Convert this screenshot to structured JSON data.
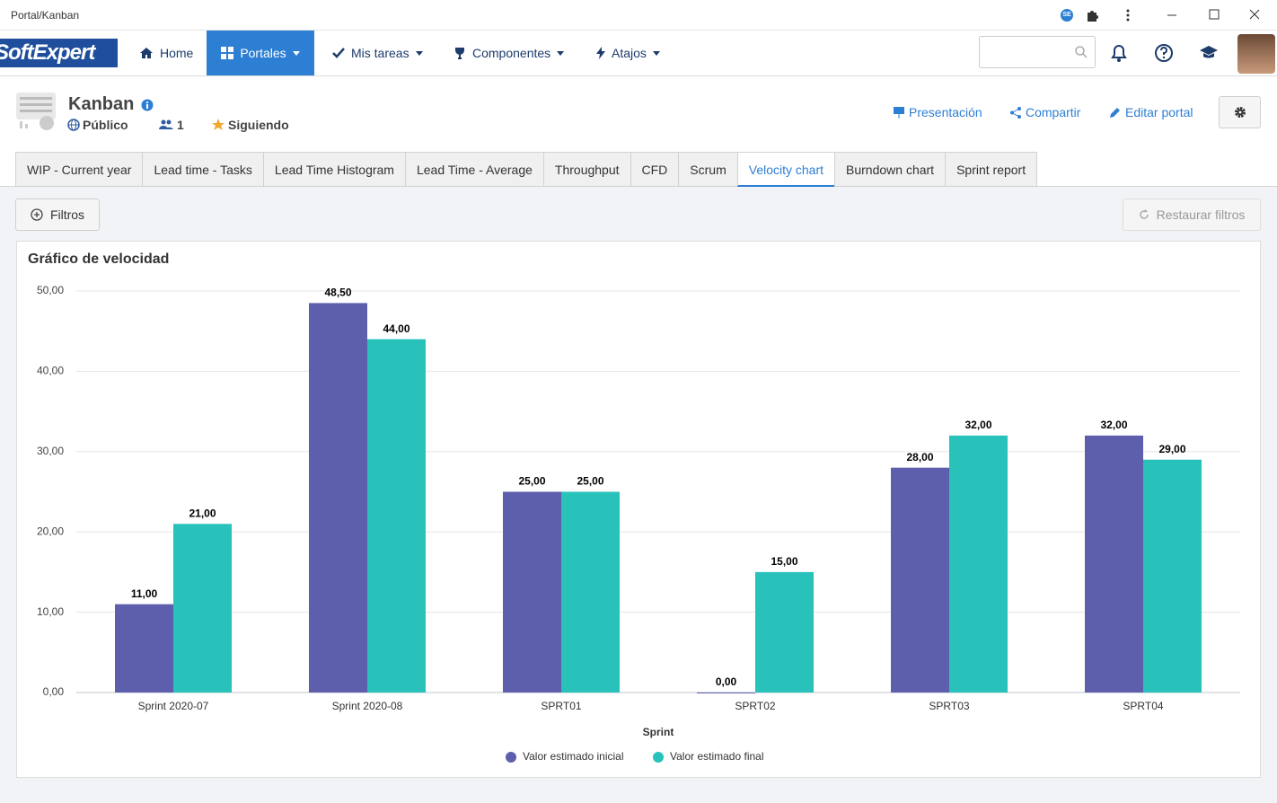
{
  "window": {
    "title": "Portal/Kanban",
    "badge": "SE"
  },
  "logo": "SoftExpert",
  "nav": {
    "items": [
      "Home",
      "Portales",
      "Mis tareas",
      "Componentes",
      "Atajos"
    ]
  },
  "header": {
    "title": "Kanban",
    "visibility": "Público",
    "members": "1",
    "following": "Siguiendo",
    "actions": [
      "Presentación",
      "Compartir",
      "Editar portal"
    ]
  },
  "tabs": [
    {
      "label": "WIP - Current year"
    },
    {
      "label": "Lead time - Tasks"
    },
    {
      "label": "Lead Time Histogram"
    },
    {
      "label": "Lead Time - Average"
    },
    {
      "label": "Throughput"
    },
    {
      "label": "CFD"
    },
    {
      "label": "Scrum"
    },
    {
      "label": "Velocity chart",
      "active": true
    },
    {
      "label": "Burndown chart"
    },
    {
      "label": "Sprint report"
    }
  ],
  "toolbar": {
    "filters": "Filtros",
    "restore": "Restaurar filtros"
  },
  "chart_data": {
    "type": "bar",
    "title": "Gráfico de velocidad",
    "x_label": "Sprint",
    "categories": [
      "Sprint 2020-07",
      "Sprint 2020-08",
      "SPRT01",
      "SPRT02",
      "SPRT03",
      "SPRT04"
    ],
    "series": [
      {
        "name": "Valor estimado inicial",
        "color": "#5d5fad",
        "values": [
          11,
          48.5,
          25,
          0,
          28,
          32
        ],
        "value_labels": [
          "11,00",
          "48,50",
          "25,00",
          "0,00",
          "28,00",
          "32,00"
        ]
      },
      {
        "name": "Valor estimado final",
        "color": "#29c2ba",
        "values": [
          21,
          44,
          25,
          15,
          32,
          29
        ],
        "value_labels": [
          "21,00",
          "44,00",
          "25,00",
          "15,00",
          "32,00",
          "29,00"
        ]
      }
    ],
    "ylim": [
      0,
      50
    ],
    "yticks": [
      {
        "value": 0,
        "label": "0,00"
      },
      {
        "value": 10,
        "label": "10,00"
      },
      {
        "value": 20,
        "label": "20,00"
      },
      {
        "value": 30,
        "label": "30,00"
      },
      {
        "value": 40,
        "label": "40,00"
      },
      {
        "value": 50,
        "label": "50,00"
      }
    ],
    "grid": true,
    "legend": "bottom"
  }
}
